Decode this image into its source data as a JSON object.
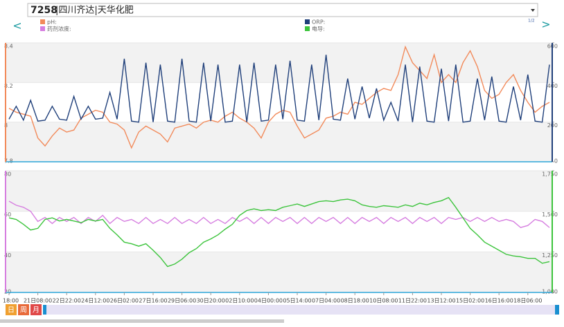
{
  "header": {
    "station_id": "7258",
    "station_name": "|四川齐达|天华化肥"
  },
  "nav": {
    "prev": "<",
    "next": ">"
  },
  "page_indicator": "1/2",
  "range_selector": {
    "buttons": [
      "日",
      "周",
      "月"
    ]
  },
  "chart_data": [
    {
      "type": "line",
      "grid": true,
      "ylim": [
        7.8,
        8.4
      ],
      "yticks": [
        7.8,
        8,
        8.2,
        8.4
      ],
      "y2lim": [
        0,
        600
      ],
      "y2ticks": [
        0,
        200,
        400,
        600
      ],
      "series": [
        {
          "name": "pH:",
          "color": "#f28a5a",
          "values": [
            8.07,
            8.05,
            8.04,
            8.03,
            7.92,
            7.88,
            7.93,
            7.97,
            7.95,
            7.96,
            8.02,
            8.04,
            8.06,
            8.05,
            8.0,
            7.99,
            7.96,
            7.87,
            7.95,
            7.98,
            7.96,
            7.94,
            7.9,
            7.97,
            7.98,
            7.99,
            7.97,
            8.0,
            8.01,
            8.0,
            8.03,
            8.05,
            8.02,
            8.0,
            7.97,
            7.92,
            8.0,
            8.04,
            8.06,
            8.05,
            7.98,
            7.92,
            7.94,
            7.96,
            8.02,
            8.03,
            8.05,
            8.04,
            8.1,
            8.09,
            8.12,
            8.15,
            8.17,
            8.16,
            8.24,
            8.38,
            8.3,
            8.26,
            8.22,
            8.34,
            8.2,
            8.24,
            8.2,
            8.3,
            8.36,
            8.28,
            8.16,
            8.12,
            8.14,
            8.2,
            8.24,
            8.16,
            8.1,
            8.05,
            8.08,
            8.1
          ]
        },
        {
          "name": "ORP:",
          "color": "#1f3f7a",
          "axis": "y2",
          "values": [
            215,
            280,
            210,
            310,
            205,
            210,
            280,
            215,
            210,
            330,
            215,
            280,
            215,
            220,
            350,
            215,
            520,
            205,
            200,
            500,
            200,
            490,
            205,
            200,
            520,
            205,
            200,
            500,
            205,
            490,
            200,
            205,
            490,
            200,
            500,
            205,
            210,
            490,
            215,
            510,
            210,
            205,
            490,
            210,
            540,
            215,
            210,
            420,
            215,
            380,
            220,
            370,
            210,
            300,
            205,
            490,
            200,
            480,
            205,
            200,
            470,
            205,
            490,
            200,
            205,
            420,
            210,
            430,
            205,
            200,
            380,
            210,
            440,
            205,
            200,
            490
          ]
        }
      ]
    },
    {
      "type": "line",
      "grid": true,
      "categories": [
        "18:00",
        null,
        null,
        null,
        "21日08:00",
        null,
        null,
        null,
        "22日22:00",
        null,
        null,
        null,
        "24日12:00",
        null,
        null,
        null,
        "26日02:00",
        null,
        null,
        null,
        "27日16:00",
        null,
        null,
        null,
        "29日06:00",
        null,
        null,
        null,
        "30日20:00",
        null,
        null,
        null,
        "02日10:00",
        null,
        null,
        null,
        "04日00:00",
        null,
        null,
        null,
        "05日14:00",
        null,
        null,
        null,
        "07日04:00",
        null,
        null,
        null,
        "08日18:00",
        null,
        null,
        null,
        "10日08:00",
        null,
        null,
        null,
        "11日22:00",
        null,
        null,
        null,
        "13日12:00",
        null,
        null,
        null,
        "15日02:00",
        null,
        null,
        null,
        "16日16:00",
        null,
        null,
        null,
        "18日06:00",
        null,
        null,
        null
      ],
      "ylim": [
        20,
        80
      ],
      "yticks": [
        20,
        40,
        60,
        80
      ],
      "y2lim": [
        1000,
        1750
      ],
      "y2ticks": [
        {
          "value": 1000,
          "label": "1,000"
        },
        {
          "value": 1250,
          "label": "1,250"
        },
        {
          "value": 1500,
          "label": "1,500"
        },
        {
          "value": 1750,
          "label": "1,750"
        }
      ],
      "series": [
        {
          "name": "药剂浓度:",
          "color": "#d67ee0",
          "values": [
            65,
            63,
            62,
            60,
            55,
            57,
            54,
            57,
            55,
            57,
            54,
            57,
            55,
            58,
            54,
            57,
            55,
            56,
            54,
            57,
            54,
            56,
            54,
            57,
            54,
            56,
            54,
            57,
            54,
            56,
            54,
            57,
            55,
            57,
            54,
            57,
            54,
            57,
            55,
            57,
            54,
            57,
            54,
            57,
            55,
            57,
            54,
            57,
            54,
            57,
            55,
            57,
            54,
            57,
            55,
            57,
            54,
            57,
            55,
            57,
            54,
            57,
            56,
            57,
            55,
            57,
            55,
            57,
            55,
            56,
            55,
            52,
            53,
            56,
            55,
            52
          ]
        },
        {
          "name": "电导:",
          "color": "#3cc43c",
          "axis": "y2",
          "values": [
            1460,
            1450,
            1420,
            1385,
            1395,
            1450,
            1460,
            1440,
            1450,
            1440,
            1430,
            1450,
            1440,
            1450,
            1395,
            1355,
            1310,
            1300,
            1285,
            1300,
            1260,
            1215,
            1160,
            1175,
            1205,
            1245,
            1270,
            1310,
            1330,
            1355,
            1390,
            1420,
            1475,
            1505,
            1515,
            1505,
            1510,
            1505,
            1525,
            1535,
            1545,
            1530,
            1545,
            1560,
            1565,
            1560,
            1570,
            1575,
            1565,
            1540,
            1530,
            1525,
            1535,
            1530,
            1525,
            1540,
            1530,
            1550,
            1540,
            1555,
            1565,
            1585,
            1525,
            1460,
            1395,
            1355,
            1310,
            1285,
            1260,
            1235,
            1225,
            1220,
            1210,
            1210,
            1180,
            1190
          ]
        }
      ]
    }
  ]
}
